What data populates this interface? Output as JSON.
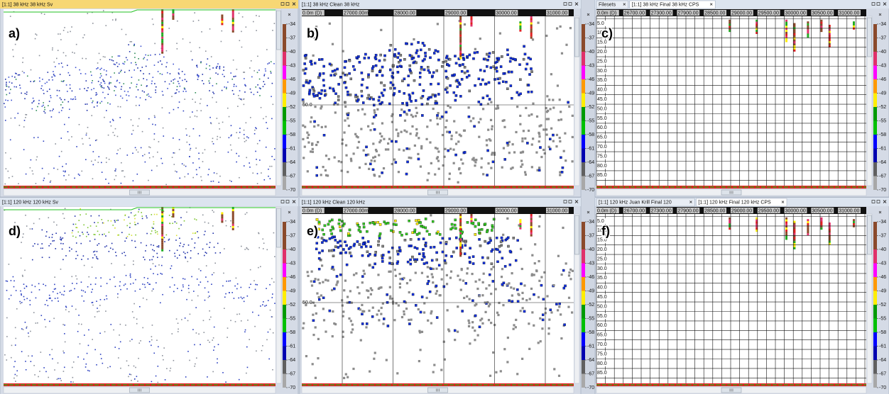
{
  "panels": [
    {
      "label": "a)",
      "title": "[1:1] 38 kHz 38 kHz Sv"
    },
    {
      "label": "b)",
      "title": "[1:1] 38 kHz Clean 38 kHz",
      "x_labels": [
        "0.0m (D)",
        "27000.00m",
        "28000.00",
        "29000.00",
        "30000.00",
        "31000.00"
      ],
      "ref_depth": "50.0"
    },
    {
      "label": "c)",
      "tabs": [
        "Filesets",
        "[1:1] 38 kHz Final 38 kHz CPS"
      ],
      "x_labels": [
        "0.0m (D)",
        "26700.00",
        "27300.00",
        "27900.00",
        "28500.00",
        "29000.00",
        "29500.00",
        "30000.00",
        "30500.00",
        "31000.00"
      ],
      "depth_labels": [
        "5.0",
        "10.0",
        "15.0",
        "20.0",
        "25.0",
        "30.0",
        "35.0",
        "40.0",
        "45.0",
        "50.0",
        "55.0",
        "60.0",
        "65.0",
        "70.0",
        "75.0",
        "80.0",
        "85.0"
      ]
    },
    {
      "label": "d)",
      "title": "[1:1] 120 kHz 120 kHz Sv"
    },
    {
      "label": "e)",
      "title": "[1:1] 120 kHz Clean 120 kHz",
      "x_labels": [
        "0.0m (D)",
        "27000.00m",
        "28000.00",
        "29000.00",
        "30000.00",
        "31000.00"
      ],
      "ref_depth": "50.0"
    },
    {
      "label": "f)",
      "tabs": [
        "[1:1] 120 kHz Juan Krill Final 120",
        "[1:1] 120 kHz Final 120 kHz CPS"
      ],
      "x_labels": [
        "0.0m (D)",
        "26700.00",
        "27300.00",
        "27900.00",
        "28500.00",
        "29000.00",
        "29500.00",
        "30000.00",
        "30500.00",
        "31000.00"
      ],
      "depth_labels": [
        "5.0",
        "10.0",
        "15.0",
        "20.0",
        "25.0",
        "30.0",
        "35.0",
        "40.0",
        "45.0",
        "50.0",
        "55.0",
        "60.0",
        "65.0",
        "70.0",
        "75.0",
        "80.0",
        "85.0"
      ]
    }
  ],
  "color_scale": [
    "-34",
    "-37",
    "-40",
    "-43",
    "-46",
    "-49",
    "-52",
    "-55",
    "-58",
    "-61",
    "-64",
    "-67",
    "-70"
  ]
}
